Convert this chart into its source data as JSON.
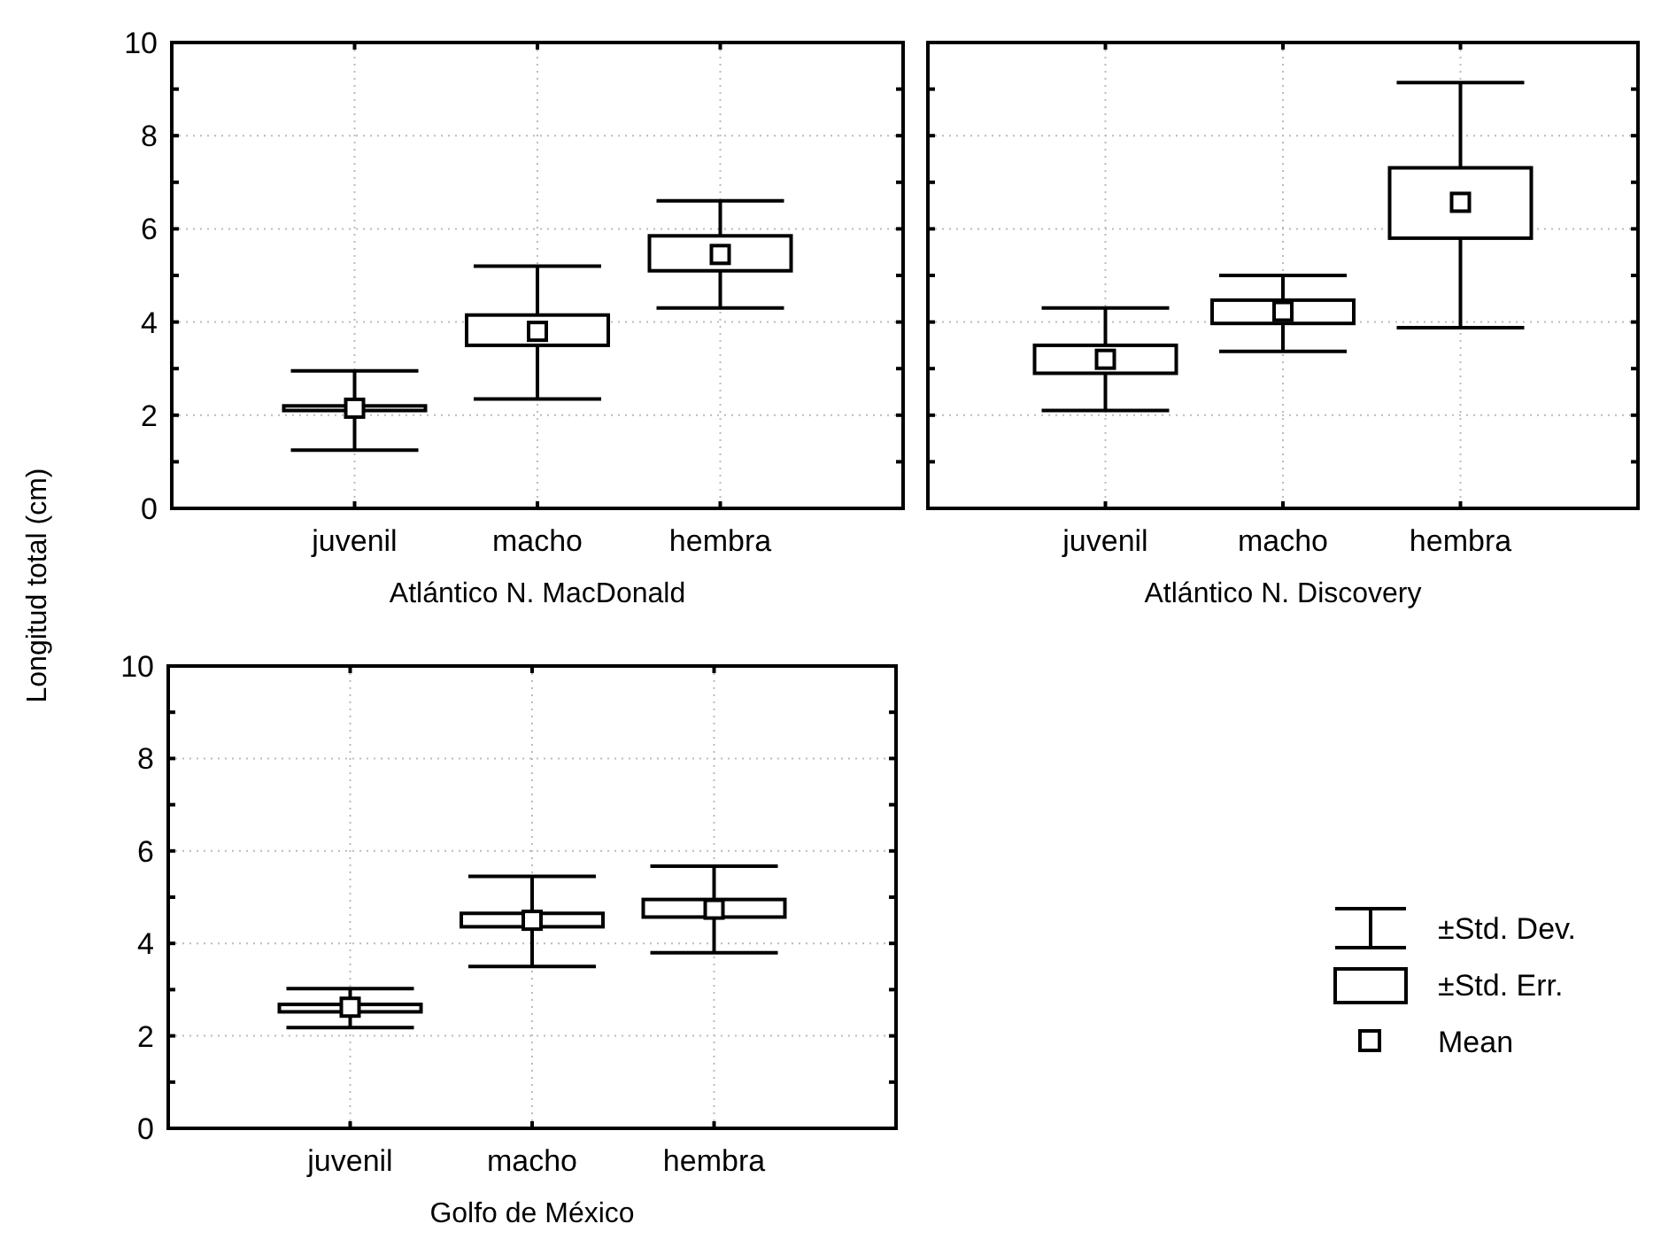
{
  "chart_data": [
    {
      "type": "box",
      "xlabel": "Atlántico N. MacDonald",
      "ylabel": "Longitud total (cm)",
      "categories": [
        "juvenil",
        "macho",
        "hembra"
      ],
      "ylim": [
        0,
        10
      ],
      "yticks": [
        0,
        {
          "value": 1,
          "label": null
        },
        2,
        {
          "value": 3,
          "label": null
        },
        4,
        {
          "value": 5,
          "label": null
        },
        6,
        {
          "value": 7,
          "label": null
        },
        8,
        {
          "value": 9,
          "label": null
        },
        10
      ],
      "grid": true,
      "boxes": [
        {
          "low": 1.25,
          "q1": 2.1,
          "q3": 2.2,
          "high": 2.95,
          "mean": 2.15
        },
        {
          "low": 2.35,
          "q1": 3.5,
          "q3": 4.15,
          "high": 5.2,
          "mean": 3.8
        },
        {
          "low": 4.3,
          "q1": 5.1,
          "q3": 5.85,
          "high": 6.6,
          "mean": 5.45
        }
      ]
    },
    {
      "type": "box",
      "xlabel": "Atlántico N. Discovery",
      "categories": [
        "juvenil",
        "macho",
        "hembra"
      ],
      "ylim": [
        0,
        10
      ],
      "yticks": [
        0,
        {
          "value": 1,
          "label": null
        },
        2,
        {
          "value": 3,
          "label": null
        },
        4,
        {
          "value": 5,
          "label": null
        },
        6,
        {
          "value": 7,
          "label": null
        },
        8,
        {
          "value": 9,
          "label": null
        },
        10
      ],
      "grid": true,
      "tick_labels": "x",
      "boxes": [
        {
          "low": 2.1,
          "q1": 2.9,
          "q3": 3.5,
          "high": 4.3,
          "mean": 3.2
        },
        {
          "low": 3.37,
          "q1": 3.97,
          "q3": 4.47,
          "high": 5.0,
          "mean": 4.23
        },
        {
          "low": 3.88,
          "q1": 5.8,
          "q3": 7.31,
          "high": 9.14,
          "mean": 6.57
        }
      ]
    },
    {
      "type": "box",
      "xlabel": "Golfo de México",
      "categories": [
        "juvenil",
        "macho",
        "hembra"
      ],
      "ylim": [
        0,
        10
      ],
      "yticks": [
        0,
        {
          "value": 1,
          "label": null
        },
        2,
        {
          "value": 3,
          "label": null
        },
        4,
        {
          "value": 5,
          "label": null
        },
        6,
        {
          "value": 7,
          "label": null
        },
        8,
        {
          "value": 9,
          "label": null
        },
        10
      ],
      "grid": true,
      "annotations": [
        "±Std. Dev.",
        "±Std. Err.",
        "Mean"
      ],
      "boxes": [
        {
          "low": 2.18,
          "q1": 2.52,
          "q3": 2.68,
          "high": 3.02,
          "mean": 2.62
        },
        {
          "low": 3.5,
          "q1": 4.36,
          "q3": 4.65,
          "high": 5.45,
          "mean": 4.5
        },
        {
          "low": 3.8,
          "q1": 4.57,
          "q3": 4.95,
          "high": 5.67,
          "mean": 4.74
        }
      ]
    }
  ]
}
